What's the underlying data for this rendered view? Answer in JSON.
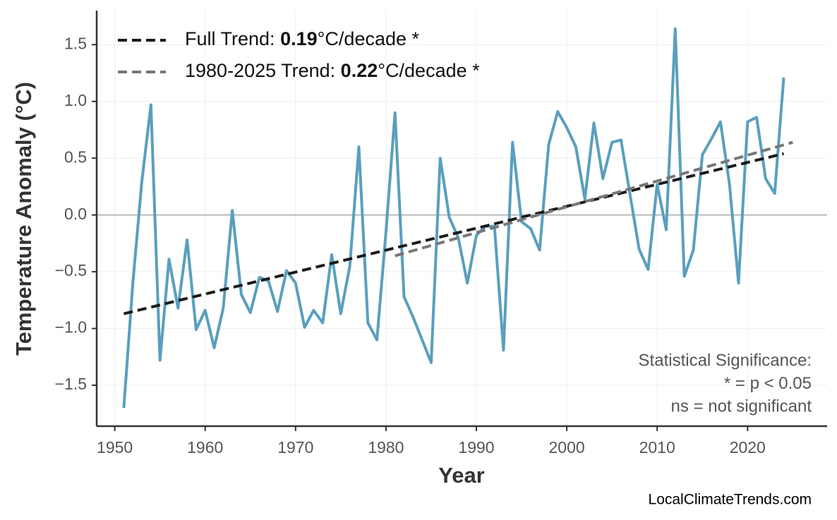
{
  "chart_data": {
    "type": "line",
    "x_label": "Year",
    "y_label": "Temperature Anomaly (°C)",
    "xlim": [
      1948,
      2028.8
    ],
    "ylim": [
      -1.86,
      1.8
    ],
    "xticks": [
      1950,
      1960,
      1970,
      1980,
      1990,
      2000,
      2010,
      2020
    ],
    "yticks": [
      {
        "value": -1.5,
        "label": "−1.5"
      },
      {
        "value": -1.0,
        "label": "−1.0"
      },
      {
        "value": -0.5,
        "label": "−0.5"
      },
      {
        "value": 0,
        "label": "0.0"
      },
      0.5,
      {
        "value": 1.0,
        "label": "1.0"
      },
      1.5
    ],
    "grid": true,
    "hline": 0,
    "series": [
      {
        "color": "#5a9fbd",
        "style": "solid",
        "x": [
          1951,
          1952,
          1953,
          1954,
          1955,
          1956,
          1957,
          1958,
          1959,
          1960,
          1961,
          1962,
          1963,
          1964,
          1965,
          1966,
          1967,
          1968,
          1969,
          1970,
          1971,
          1972,
          1973,
          1974,
          1975,
          1976,
          1977,
          1978,
          1979,
          1980,
          1981,
          1982,
          1983,
          1984,
          1985,
          1986,
          1987,
          1988,
          1989,
          1990,
          1991,
          1992,
          1993,
          1994,
          1995,
          1996,
          1997,
          1998,
          1999,
          2000,
          2001,
          2002,
          2003,
          2004,
          2005,
          2006,
          2007,
          2008,
          2009,
          2010,
          2011,
          2012,
          2013,
          2014,
          2015,
          2016,
          2017,
          2018,
          2019,
          2020,
          2021,
          2022,
          2023,
          2024
        ],
        "values": [
          -1.7,
          -0.6,
          0.3,
          0.97,
          -1.28,
          -0.39,
          -0.82,
          -0.22,
          -1.01,
          -0.84,
          -1.17,
          -0.82,
          0.04,
          -0.7,
          -0.86,
          -0.55,
          -0.58,
          -0.85,
          -0.49,
          -0.6,
          -0.99,
          -0.84,
          -0.95,
          -0.35,
          -0.87,
          -0.45,
          0.6,
          -0.95,
          -1.1,
          -0.15,
          0.9,
          -0.72,
          -0.9,
          -1.1,
          -1.3,
          0.5,
          -0.02,
          -0.2,
          -0.6,
          -0.18,
          -0.1,
          -0.1,
          -1.19,
          0.64,
          -0.06,
          -0.12,
          -0.31,
          0.62,
          0.91,
          0.77,
          0.6,
          0.14,
          0.81,
          0.32,
          0.64,
          0.66,
          0.18,
          -0.3,
          -0.48,
          0.27,
          -0.13,
          1.64,
          -0.54,
          -0.31,
          0.53,
          0.67,
          0.82,
          0.27,
          -0.6,
          0.82,
          0.86,
          0.32,
          0.19,
          1.21
        ]
      },
      {
        "color": "#1a1a1a",
        "style": "dashed",
        "legend_parts": [
          "Full Trend: ",
          "0.19",
          "°C/decade *"
        ],
        "x": [
          1951,
          2024
        ],
        "values": [
          -0.87,
          0.54
        ]
      },
      {
        "color": "#777777",
        "style": "dashed",
        "legend_parts": [
          "1980-2025 Trend: ",
          "0.22",
          "°C/decade *"
        ],
        "x": [
          1981,
          2025
        ],
        "values": [
          -0.36,
          0.64
        ]
      }
    ],
    "annotation": [
      "Statistical Significance:",
      "* = p < 0.05",
      "ns = not significant"
    ],
    "source": "LocalClimateTrends.com"
  }
}
